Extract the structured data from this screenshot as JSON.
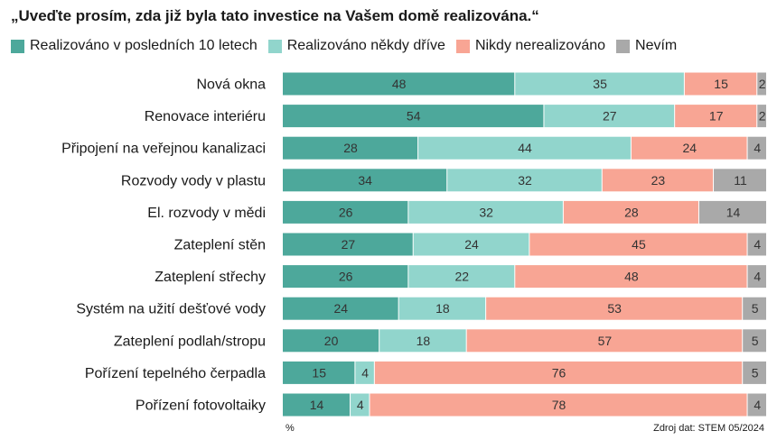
{
  "chart_data": {
    "type": "bar",
    "orientation": "horizontal",
    "stacked": true,
    "title": "„Uveďte prosím, zda již byla tato investice na Vašem domě realizována.“",
    "unit_label": "%",
    "source": "Zdroj dat: STEM 05/2024",
    "legend_position": "top",
    "grid": false,
    "xlim": [
      0,
      100
    ],
    "categories": [
      "Nová okna",
      "Renovace interiéru",
      "Připojení na veřejnou kanalizaci",
      "Rozvody vody v plastu",
      "El. rozvody v mědi",
      "Zateplení stěn",
      "Zateplení střechy",
      "Systém na užití dešťové vody",
      "Zateplení podlah/stropu",
      "Pořízení tepelného čerpadla",
      "Pořízení fotovoltaiky"
    ],
    "series": [
      {
        "name": "Realizováno v posledních 10 letech",
        "color": "#4da89b",
        "values": [
          48,
          54,
          28,
          34,
          26,
          27,
          26,
          24,
          20,
          15,
          14
        ]
      },
      {
        "name": "Realizováno někdy dříve",
        "color": "#91d5cc",
        "values": [
          35,
          27,
          44,
          32,
          32,
          24,
          22,
          18,
          18,
          4,
          4
        ]
      },
      {
        "name": "Nikdy nerealizováno",
        "color": "#f8a594",
        "values": [
          15,
          17,
          24,
          23,
          28,
          45,
          48,
          53,
          57,
          76,
          78
        ]
      },
      {
        "name": "Nevím",
        "color": "#a9a9a9",
        "values": [
          2,
          2,
          4,
          11,
          14,
          4,
          4,
          5,
          5,
          5,
          4
        ]
      }
    ]
  }
}
